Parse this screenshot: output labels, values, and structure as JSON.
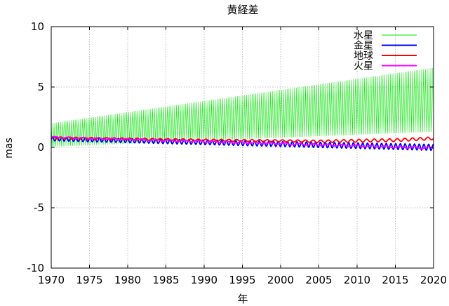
{
  "chart_data": {
    "type": "line",
    "title": "黄経差",
    "xlabel": "年",
    "ylabel": "mas",
    "xlim": [
      1970,
      2020
    ],
    "ylim": [
      -10,
      10
    ],
    "xticks": [
      "1970",
      "1975",
      "1980",
      "1985",
      "1990",
      "1995",
      "2000",
      "2005",
      "2010",
      "2015",
      "2020"
    ],
    "yticks": [
      "-10",
      "-5",
      "0",
      "5",
      "10"
    ],
    "grid": true,
    "legend_position": "top-right",
    "series": [
      {
        "name": "水星",
        "color": "#00e000",
        "style": "oscillating band (high-frequency, ~0.24 yr period)",
        "x": [
          1970,
          2020
        ],
        "upper": [
          2.0,
          6.6
        ],
        "lower": [
          0.05,
          1.3
        ],
        "period_years": 0.241
      },
      {
        "name": "金星",
        "color": "#0000ff",
        "style": "oscillating (~0.62 yr period)",
        "x": [
          1970,
          2020
        ],
        "mean": [
          0.7,
          0.0
        ],
        "amplitude": [
          0.15,
          0.25
        ],
        "period_years": 0.615
      },
      {
        "name": "地球",
        "color": "#ff0000",
        "style": "oscillating (~1 yr period)",
        "x": [
          1970,
          1980,
          1990,
          2000,
          2005,
          2010,
          2015,
          2020
        ],
        "mean": [
          0.8,
          0.7,
          0.6,
          0.55,
          0.5,
          0.55,
          0.6,
          0.75
        ],
        "amplitude": [
          0.08,
          0.08,
          0.08,
          0.08,
          0.1,
          0.12,
          0.12,
          0.12
        ],
        "period_years": 1.0
      },
      {
        "name": "火星",
        "color": "#ff00ff",
        "style": "slow drift (~1.88 yr period)",
        "x": [
          1970,
          2020
        ],
        "mean": [
          0.85,
          -0.05
        ],
        "amplitude": [
          0.05,
          0.07
        ],
        "period_years": 1.88
      }
    ]
  }
}
